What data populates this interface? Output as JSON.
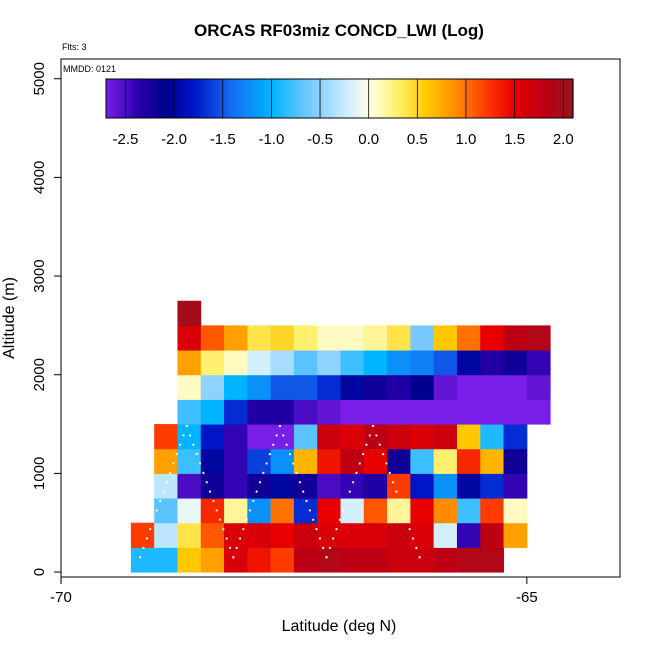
{
  "chart_data": {
    "type": "heatmap",
    "title": "ORCAS RF03miz CONCD_LWI (Log)",
    "annotations": {
      "flights": "Flts: 3",
      "date": "MMDD: 0121"
    },
    "xlabel": "Latitude (deg N)",
    "ylabel": "Altitude (m)",
    "xlim": [
      -70,
      -64
    ],
    "ylim": [
      -50,
      5200
    ],
    "xticks": [
      -70,
      -65
    ],
    "xtick_labels": [
      "-70",
      "-65"
    ],
    "yticks": [
      0,
      1000,
      2000,
      3000,
      4000,
      5000
    ],
    "ytick_labels": [
      "0",
      "1000",
      "2000",
      "3000",
      "4000",
      "5000"
    ],
    "colorbar": {
      "range": [
        -2.7,
        2.1
      ],
      "ticks": [
        -2.5,
        -2.0,
        -1.5,
        -1.0,
        -0.5,
        0.0,
        0.5,
        1.0,
        1.5,
        2.0
      ],
      "tick_labels": [
        "-2.5",
        "-2.0",
        "-1.5",
        "-1.0",
        "-0.5",
        "0.0",
        "0.5",
        "1.0",
        "1.5",
        "2.0"
      ]
    },
    "lat_bins": [
      -69.25,
      -69.0,
      -68.75,
      -68.5,
      -68.25,
      -68.0,
      -67.75,
      -67.5,
      -67.25,
      -67.0,
      -66.75,
      -66.5,
      -66.25,
      -66.0,
      -65.75,
      -65.5,
      -65.25,
      -65.0,
      -64.75
    ],
    "alt_bins": [
      0,
      250,
      500,
      750,
      1000,
      1250,
      1500,
      1750,
      2000,
      2250,
      2500,
      2750
    ],
    "cells": [
      [
        -69.25,
        0,
        -0.9
      ],
      [
        -69.0,
        0,
        -0.9
      ],
      [
        -68.75,
        0,
        0.6
      ],
      [
        -68.5,
        0,
        0.8
      ],
      [
        -68.25,
        0,
        1.6
      ],
      [
        -68.0,
        0,
        1.4
      ],
      [
        -67.75,
        0,
        1.2
      ],
      [
        -67.5,
        0,
        1.8
      ],
      [
        -67.25,
        0,
        1.9
      ],
      [
        -67.0,
        0,
        1.8
      ],
      [
        -66.75,
        0,
        1.8
      ],
      [
        -66.5,
        0,
        1.7
      ],
      [
        -66.25,
        0,
        1.7
      ],
      [
        -66.0,
        0,
        1.8
      ],
      [
        -65.75,
        0,
        1.9
      ],
      [
        -65.5,
        0,
        1.9
      ],
      [
        -69.25,
        250,
        1.2
      ],
      [
        -69.0,
        250,
        -0.3
      ],
      [
        -68.75,
        250,
        0.4
      ],
      [
        -68.5,
        250,
        1.1
      ],
      [
        -68.25,
        250,
        1.6
      ],
      [
        -68.0,
        250,
        1.6
      ],
      [
        -67.75,
        250,
        1.5
      ],
      [
        -67.5,
        250,
        1.7
      ],
      [
        -67.25,
        250,
        1.6
      ],
      [
        -67.0,
        250,
        1.6
      ],
      [
        -66.75,
        250,
        1.6
      ],
      [
        -66.5,
        250,
        1.7
      ],
      [
        -66.25,
        250,
        1.6
      ],
      [
        -66.0,
        250,
        -0.2
      ],
      [
        -65.75,
        250,
        -2.4
      ],
      [
        -65.5,
        250,
        1.8
      ],
      [
        -65.25,
        250,
        0.8
      ],
      [
        -68.75,
        500,
        0.1
      ],
      [
        -69.0,
        500,
        -0.7
      ],
      [
        -68.75,
        500,
        -0.1
      ],
      [
        -68.5,
        500,
        1.3
      ],
      [
        -68.25,
        500,
        0.2
      ],
      [
        -68.0,
        500,
        -1.2
      ],
      [
        -67.75,
        500,
        1.0
      ],
      [
        -67.5,
        500,
        -1.7
      ],
      [
        -67.25,
        500,
        1.5
      ],
      [
        -67.0,
        500,
        -0.2
      ],
      [
        -66.75,
        500,
        1.1
      ],
      [
        -66.5,
        500,
        0.2
      ],
      [
        -66.25,
        500,
        1.5
      ],
      [
        -66.0,
        500,
        0.9
      ],
      [
        -65.75,
        500,
        -0.8
      ],
      [
        -65.5,
        500,
        1.2
      ],
      [
        -65.25,
        500,
        0.1
      ],
      [
        -69.0,
        750,
        -0.3
      ],
      [
        -68.75,
        750,
        -2.5
      ],
      [
        -68.5,
        750,
        -2.2
      ],
      [
        -68.25,
        750,
        -2.4
      ],
      [
        -68.0,
        750,
        -2.2
      ],
      [
        -67.75,
        750,
        -2.0
      ],
      [
        -67.5,
        750,
        -2.2
      ],
      [
        -67.25,
        750,
        -2.5
      ],
      [
        -67.0,
        750,
        -2.4
      ],
      [
        -66.75,
        750,
        -2.3
      ],
      [
        -66.5,
        750,
        1.2
      ],
      [
        -66.25,
        750,
        -1.8
      ],
      [
        -66.0,
        750,
        -1.2
      ],
      [
        -65.75,
        750,
        -2.0
      ],
      [
        -65.5,
        750,
        -1.7
      ],
      [
        -65.25,
        750,
        -2.4
      ],
      [
        -69.0,
        1000,
        0.8
      ],
      [
        -68.75,
        1000,
        -0.8
      ],
      [
        -68.5,
        1000,
        -2.0
      ],
      [
        -68.25,
        1000,
        -2.4
      ],
      [
        -68.0,
        1000,
        -1.6
      ],
      [
        -67.75,
        1000,
        -1.2
      ],
      [
        -67.5,
        1000,
        0.7
      ],
      [
        -67.25,
        1000,
        1.4
      ],
      [
        -67.0,
        1000,
        1.8
      ],
      [
        -66.75,
        1000,
        1.5
      ],
      [
        -66.5,
        1000,
        -2.2
      ],
      [
        -66.25,
        1000,
        -0.8
      ],
      [
        -66.0,
        1000,
        0.3
      ],
      [
        -65.75,
        1000,
        1.3
      ],
      [
        -65.5,
        1000,
        0.7
      ],
      [
        -65.25,
        1000,
        -2.2
      ],
      [
        -69.0,
        1250,
        1.2
      ],
      [
        -68.75,
        1250,
        -1.0
      ],
      [
        -68.5,
        1250,
        -1.8
      ],
      [
        -68.25,
        1250,
        -2.4
      ],
      [
        -68.0,
        1250,
        -2.7
      ],
      [
        -67.75,
        1250,
        -2.7
      ],
      [
        -67.5,
        1250,
        -0.7
      ],
      [
        -67.25,
        1250,
        1.7
      ],
      [
        -67.0,
        1250,
        1.6
      ],
      [
        -66.75,
        1250,
        1.8
      ],
      [
        -66.5,
        1250,
        1.7
      ],
      [
        -66.25,
        1250,
        1.6
      ],
      [
        -66.0,
        1250,
        1.7
      ],
      [
        -65.75,
        1250,
        0.6
      ],
      [
        -65.5,
        1250,
        -0.9
      ],
      [
        -65.25,
        1250,
        -1.7
      ],
      [
        -68.75,
        1500,
        -0.8
      ],
      [
        -68.5,
        1500,
        -1.0
      ],
      [
        -68.25,
        1500,
        -1.7
      ],
      [
        -68.0,
        1500,
        -2.3
      ],
      [
        -67.75,
        1500,
        -2.3
      ],
      [
        -67.5,
        1500,
        -2.5
      ],
      [
        -67.25,
        1500,
        -2.6
      ],
      [
        -67.0,
        1500,
        -2.7
      ],
      [
        -66.75,
        1500,
        -2.7
      ],
      [
        -66.5,
        1500,
        -2.7
      ],
      [
        -66.25,
        1500,
        -2.7
      ],
      [
        -66.0,
        1500,
        -2.7
      ],
      [
        -65.75,
        1500,
        -2.7
      ],
      [
        -65.5,
        1500,
        -2.7
      ],
      [
        -65.25,
        1500,
        -2.7
      ],
      [
        -65.0,
        1500,
        -2.7
      ],
      [
        -68.75,
        1750,
        0.1
      ],
      [
        -68.5,
        1750,
        -0.5
      ],
      [
        -68.25,
        1750,
        -1.0
      ],
      [
        -68.0,
        1750,
        -1.2
      ],
      [
        -67.75,
        1750,
        -1.5
      ],
      [
        -67.5,
        1750,
        -1.5
      ],
      [
        -67.25,
        1750,
        -1.7
      ],
      [
        -67.0,
        1750,
        -2.0
      ],
      [
        -66.75,
        1750,
        -2.2
      ],
      [
        -66.5,
        1750,
        -2.3
      ],
      [
        -66.25,
        1750,
        -2.1
      ],
      [
        -66.0,
        1750,
        -2.6
      ],
      [
        -65.75,
        1750,
        -2.7
      ],
      [
        -65.5,
        1750,
        -2.7
      ],
      [
        -65.25,
        1750,
        -2.7
      ],
      [
        -65.0,
        1750,
        -2.6
      ],
      [
        -68.75,
        2000,
        0.8
      ],
      [
        -68.5,
        2000,
        0.3
      ],
      [
        -68.25,
        2000,
        0.1
      ],
      [
        -68.0,
        2000,
        -0.2
      ],
      [
        -67.75,
        2000,
        -0.4
      ],
      [
        -67.5,
        2000,
        -0.7
      ],
      [
        -67.25,
        2000,
        -0.5
      ],
      [
        -67.0,
        2000,
        -0.8
      ],
      [
        -66.75,
        2000,
        -1.0
      ],
      [
        -66.5,
        2000,
        -1.2
      ],
      [
        -66.25,
        2000,
        -1.3
      ],
      [
        -66.0,
        2000,
        -1.5
      ],
      [
        -65.75,
        2000,
        -2.0
      ],
      [
        -65.5,
        2000,
        -2.3
      ],
      [
        -65.25,
        2000,
        -2.2
      ],
      [
        -65.0,
        2000,
        -2.4
      ],
      [
        -68.75,
        2250,
        1.6
      ],
      [
        -68.5,
        2250,
        1.1
      ],
      [
        -68.25,
        2250,
        0.8
      ],
      [
        -68.0,
        2250,
        0.4
      ],
      [
        -67.75,
        2250,
        0.5
      ],
      [
        -67.5,
        2250,
        0.3
      ],
      [
        -67.25,
        2250,
        0.1
      ],
      [
        -67.0,
        2250,
        0.1
      ],
      [
        -66.75,
        2250,
        0.2
      ],
      [
        -66.5,
        2250,
        0.4
      ],
      [
        -66.25,
        2250,
        -0.6
      ],
      [
        -66.0,
        2250,
        0.6
      ],
      [
        -65.75,
        2250,
        1.0
      ],
      [
        -65.5,
        2250,
        1.5
      ],
      [
        -65.25,
        2250,
        1.8
      ],
      [
        -65.0,
        2250,
        1.9
      ],
      [
        -68.75,
        2500,
        2.0
      ]
    ]
  }
}
